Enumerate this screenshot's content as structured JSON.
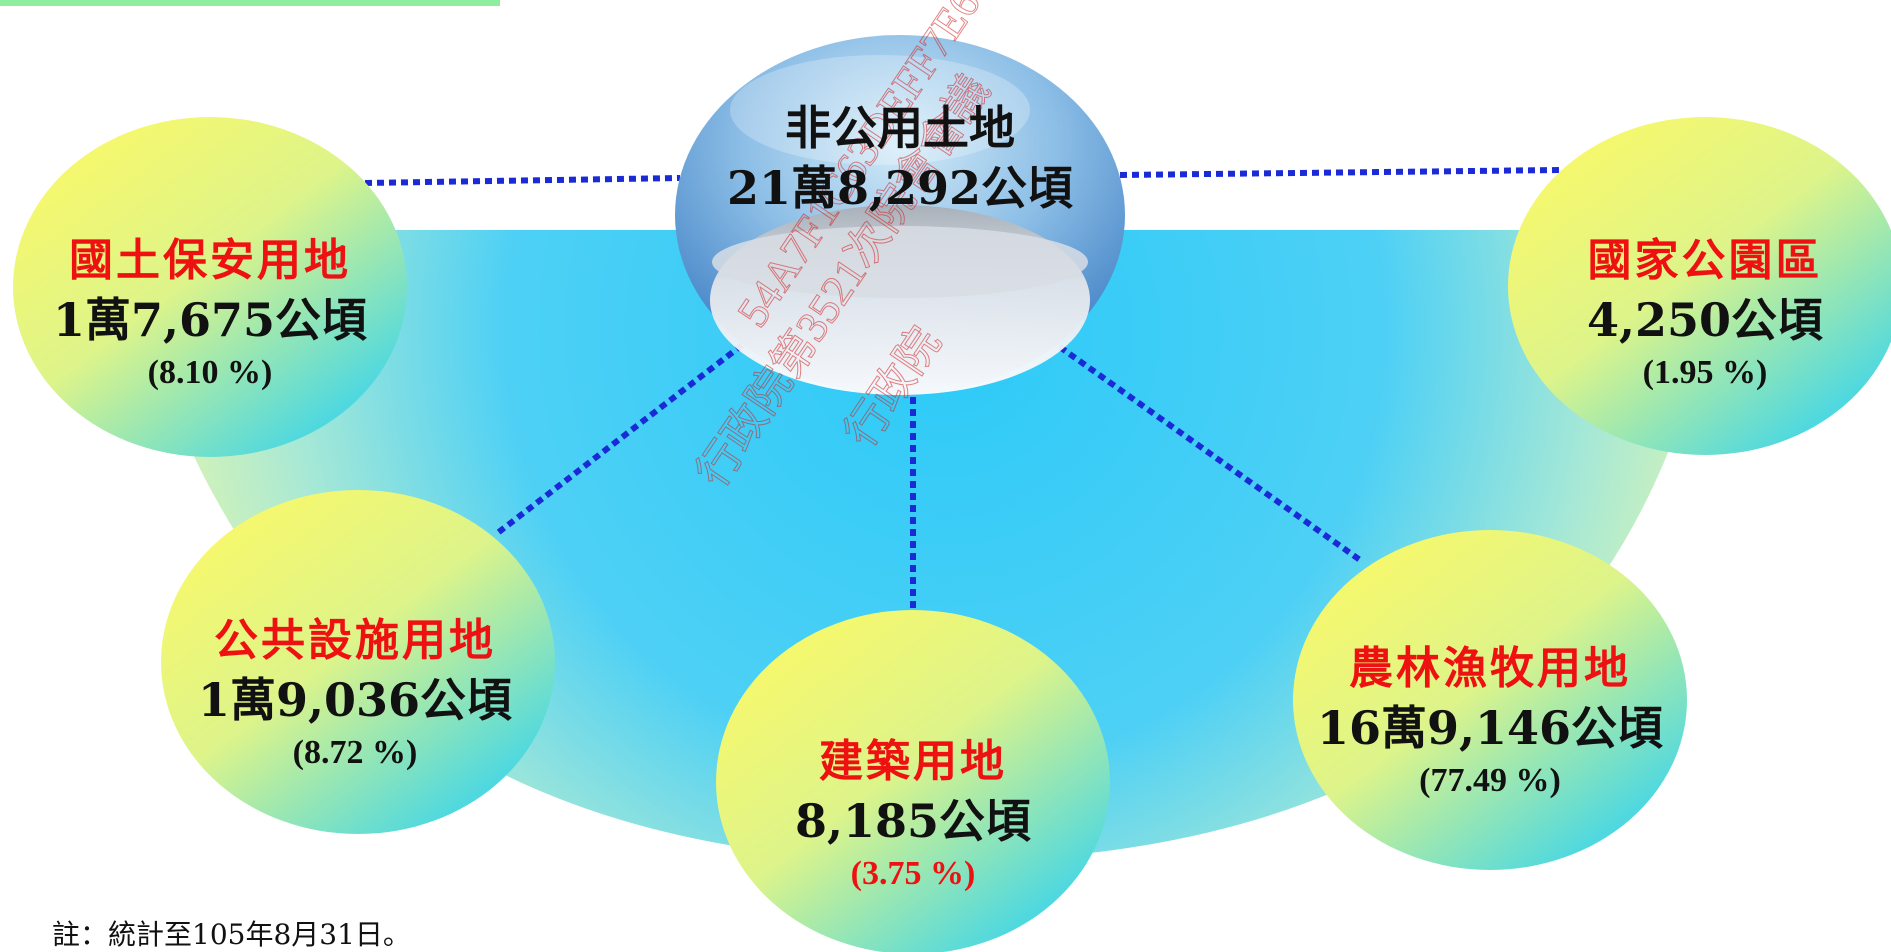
{
  "diagram": {
    "center": {
      "name": "非公用土地",
      "area": "21萬8,292公頃"
    },
    "categories": [
      {
        "id": "national-security",
        "name": "國土保安用地",
        "area": "1萬7,675公頃",
        "percent": "(8.10 %)",
        "percent_color": "#111111"
      },
      {
        "id": "national-park",
        "name": "國家公園區",
        "area": "4,250公頃",
        "percent": "(1.95 %)",
        "percent_color": "#111111"
      },
      {
        "id": "public-facility",
        "name": "公共設施用地",
        "area": "1萬9,036公頃",
        "percent": "(8.72 %)",
        "percent_color": "#111111"
      },
      {
        "id": "building",
        "name": "建築用地",
        "area": "8,185公頃",
        "percent": "(3.75 %)",
        "percent_color": "#ee1111"
      },
      {
        "id": "agriculture",
        "name": "農林漁牧用地",
        "area": "16萬9,146公頃",
        "percent": "(77.49 %)",
        "percent_color": "#111111"
      }
    ]
  },
  "watermark": {
    "line1": "54A7F1C63DEFF7E6",
    "line2": "行政院第3521次院會會議",
    "line3": "行政院"
  },
  "note": "註：統計至105年8月31日。",
  "colors": {
    "connector": "#1a2ad6",
    "category_text": "#ee1111",
    "bubble_yellow": "#f5f870",
    "bubble_cyan": "#3fd6e8",
    "fan_blue": "#33c8f8",
    "header_bar": "#8eeea0"
  }
}
